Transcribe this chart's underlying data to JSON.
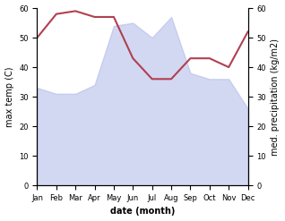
{
  "months": [
    "Jan",
    "Feb",
    "Mar",
    "Apr",
    "May",
    "Jun",
    "Jul",
    "Aug",
    "Sep",
    "Oct",
    "Nov",
    "Dec"
  ],
  "month_indices": [
    0,
    1,
    2,
    3,
    4,
    5,
    6,
    7,
    8,
    9,
    10,
    11
  ],
  "temperature": [
    33,
    31,
    31,
    34,
    54,
    55,
    50,
    57,
    38,
    36,
    36,
    26
  ],
  "precipitation": [
    50,
    58,
    59,
    57,
    57,
    43,
    36,
    36,
    43,
    43,
    40,
    52
  ],
  "temp_fill_color": "#b0b8e8",
  "temp_fill_alpha": 0.55,
  "line_color": "#b04050",
  "ylabel_left": "max temp (C)",
  "ylabel_right": "med. precipitation (kg/m2)",
  "xlabel": "date (month)",
  "ylim_left": [
    0,
    60
  ],
  "ylim_right": [
    0,
    60
  ],
  "yticks_left": [
    0,
    10,
    20,
    30,
    40,
    50,
    60
  ],
  "yticks_right": [
    0,
    10,
    20,
    30,
    40,
    50,
    60
  ],
  "background_color": "#ffffff",
  "fig_width": 3.18,
  "fig_height": 2.47,
  "dpi": 100
}
